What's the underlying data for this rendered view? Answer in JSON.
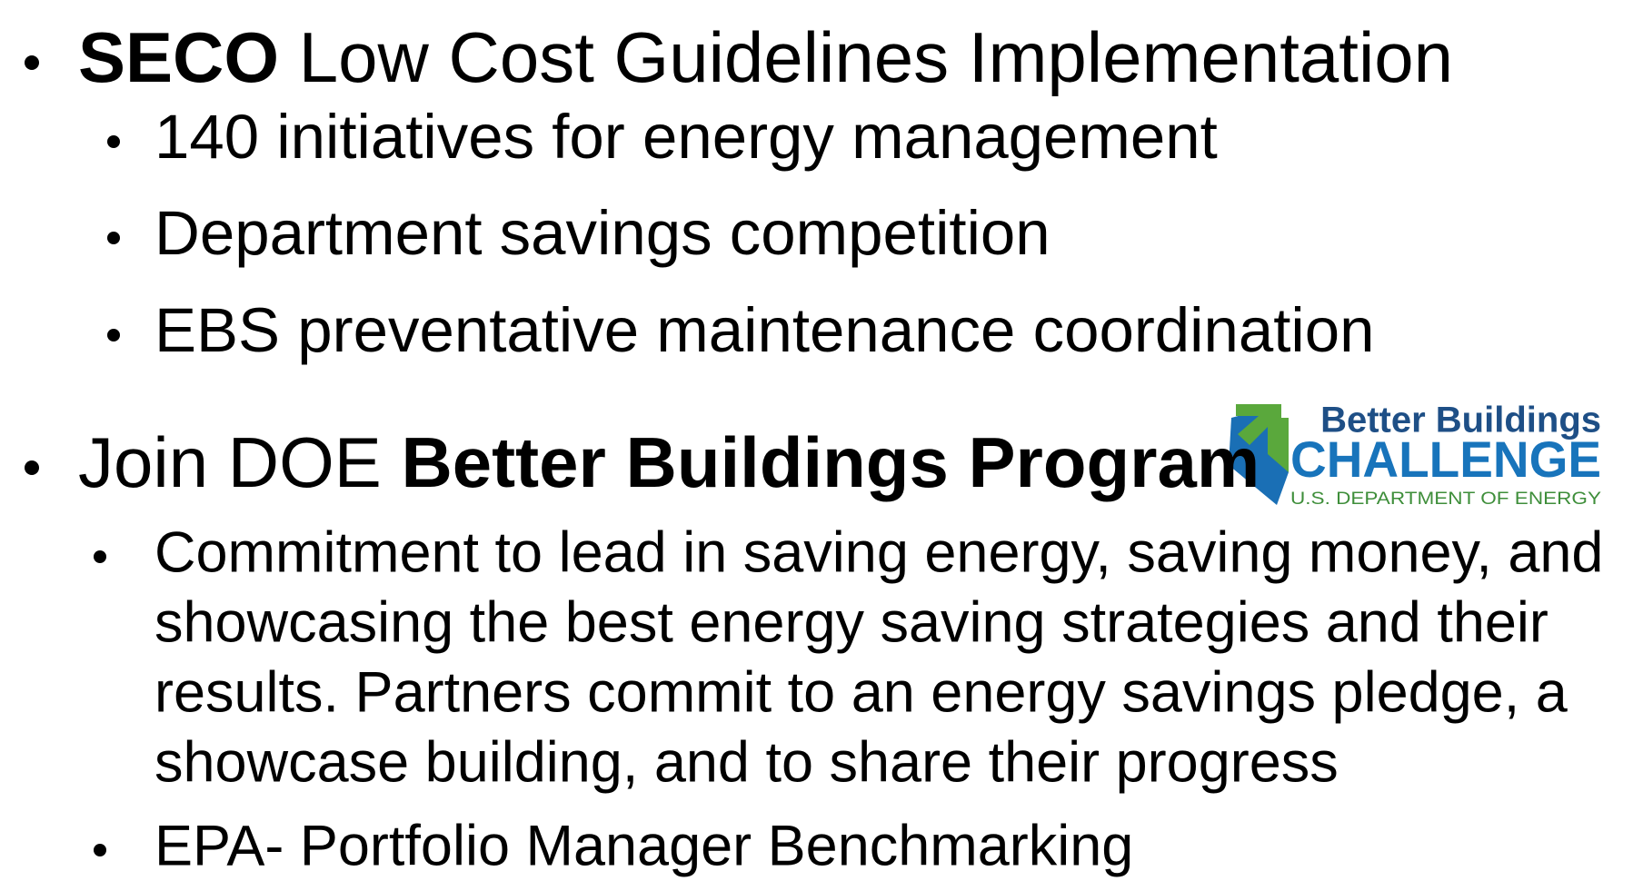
{
  "items": [
    {
      "segments": [
        {
          "text": "SECO",
          "bold": true
        },
        {
          "text": " Low Cost Guidelines Implementation"
        }
      ],
      "subitems": [
        {
          "lines": [
            "140 initiatives for energy management"
          ]
        },
        {
          "lines": [
            "Department savings competition"
          ]
        },
        {
          "lines": [
            "EBS preventative maintenance coordination"
          ]
        }
      ]
    },
    {
      "segments": [
        {
          "text": "Join DOE "
        },
        {
          "text": "Better Buildings Program",
          "bold": true
        }
      ],
      "subitems": [
        {
          "lines": [
            "Commitment to lead in saving energy, saving money, and",
            "showcasing the best energy saving strategies and their",
            "results. Partners commit to an energy savings pledge, a",
            "showcase building, and to share their progress"
          ]
        },
        {
          "lines": [
            "EPA- Portfolio Manager Benchmarking"
          ]
        }
      ]
    }
  ],
  "logo": {
    "line1": "Better Buildings",
    "line2": "CHALLENGE",
    "line3": "U.S. DEPARTMENT OF ENERGY"
  }
}
